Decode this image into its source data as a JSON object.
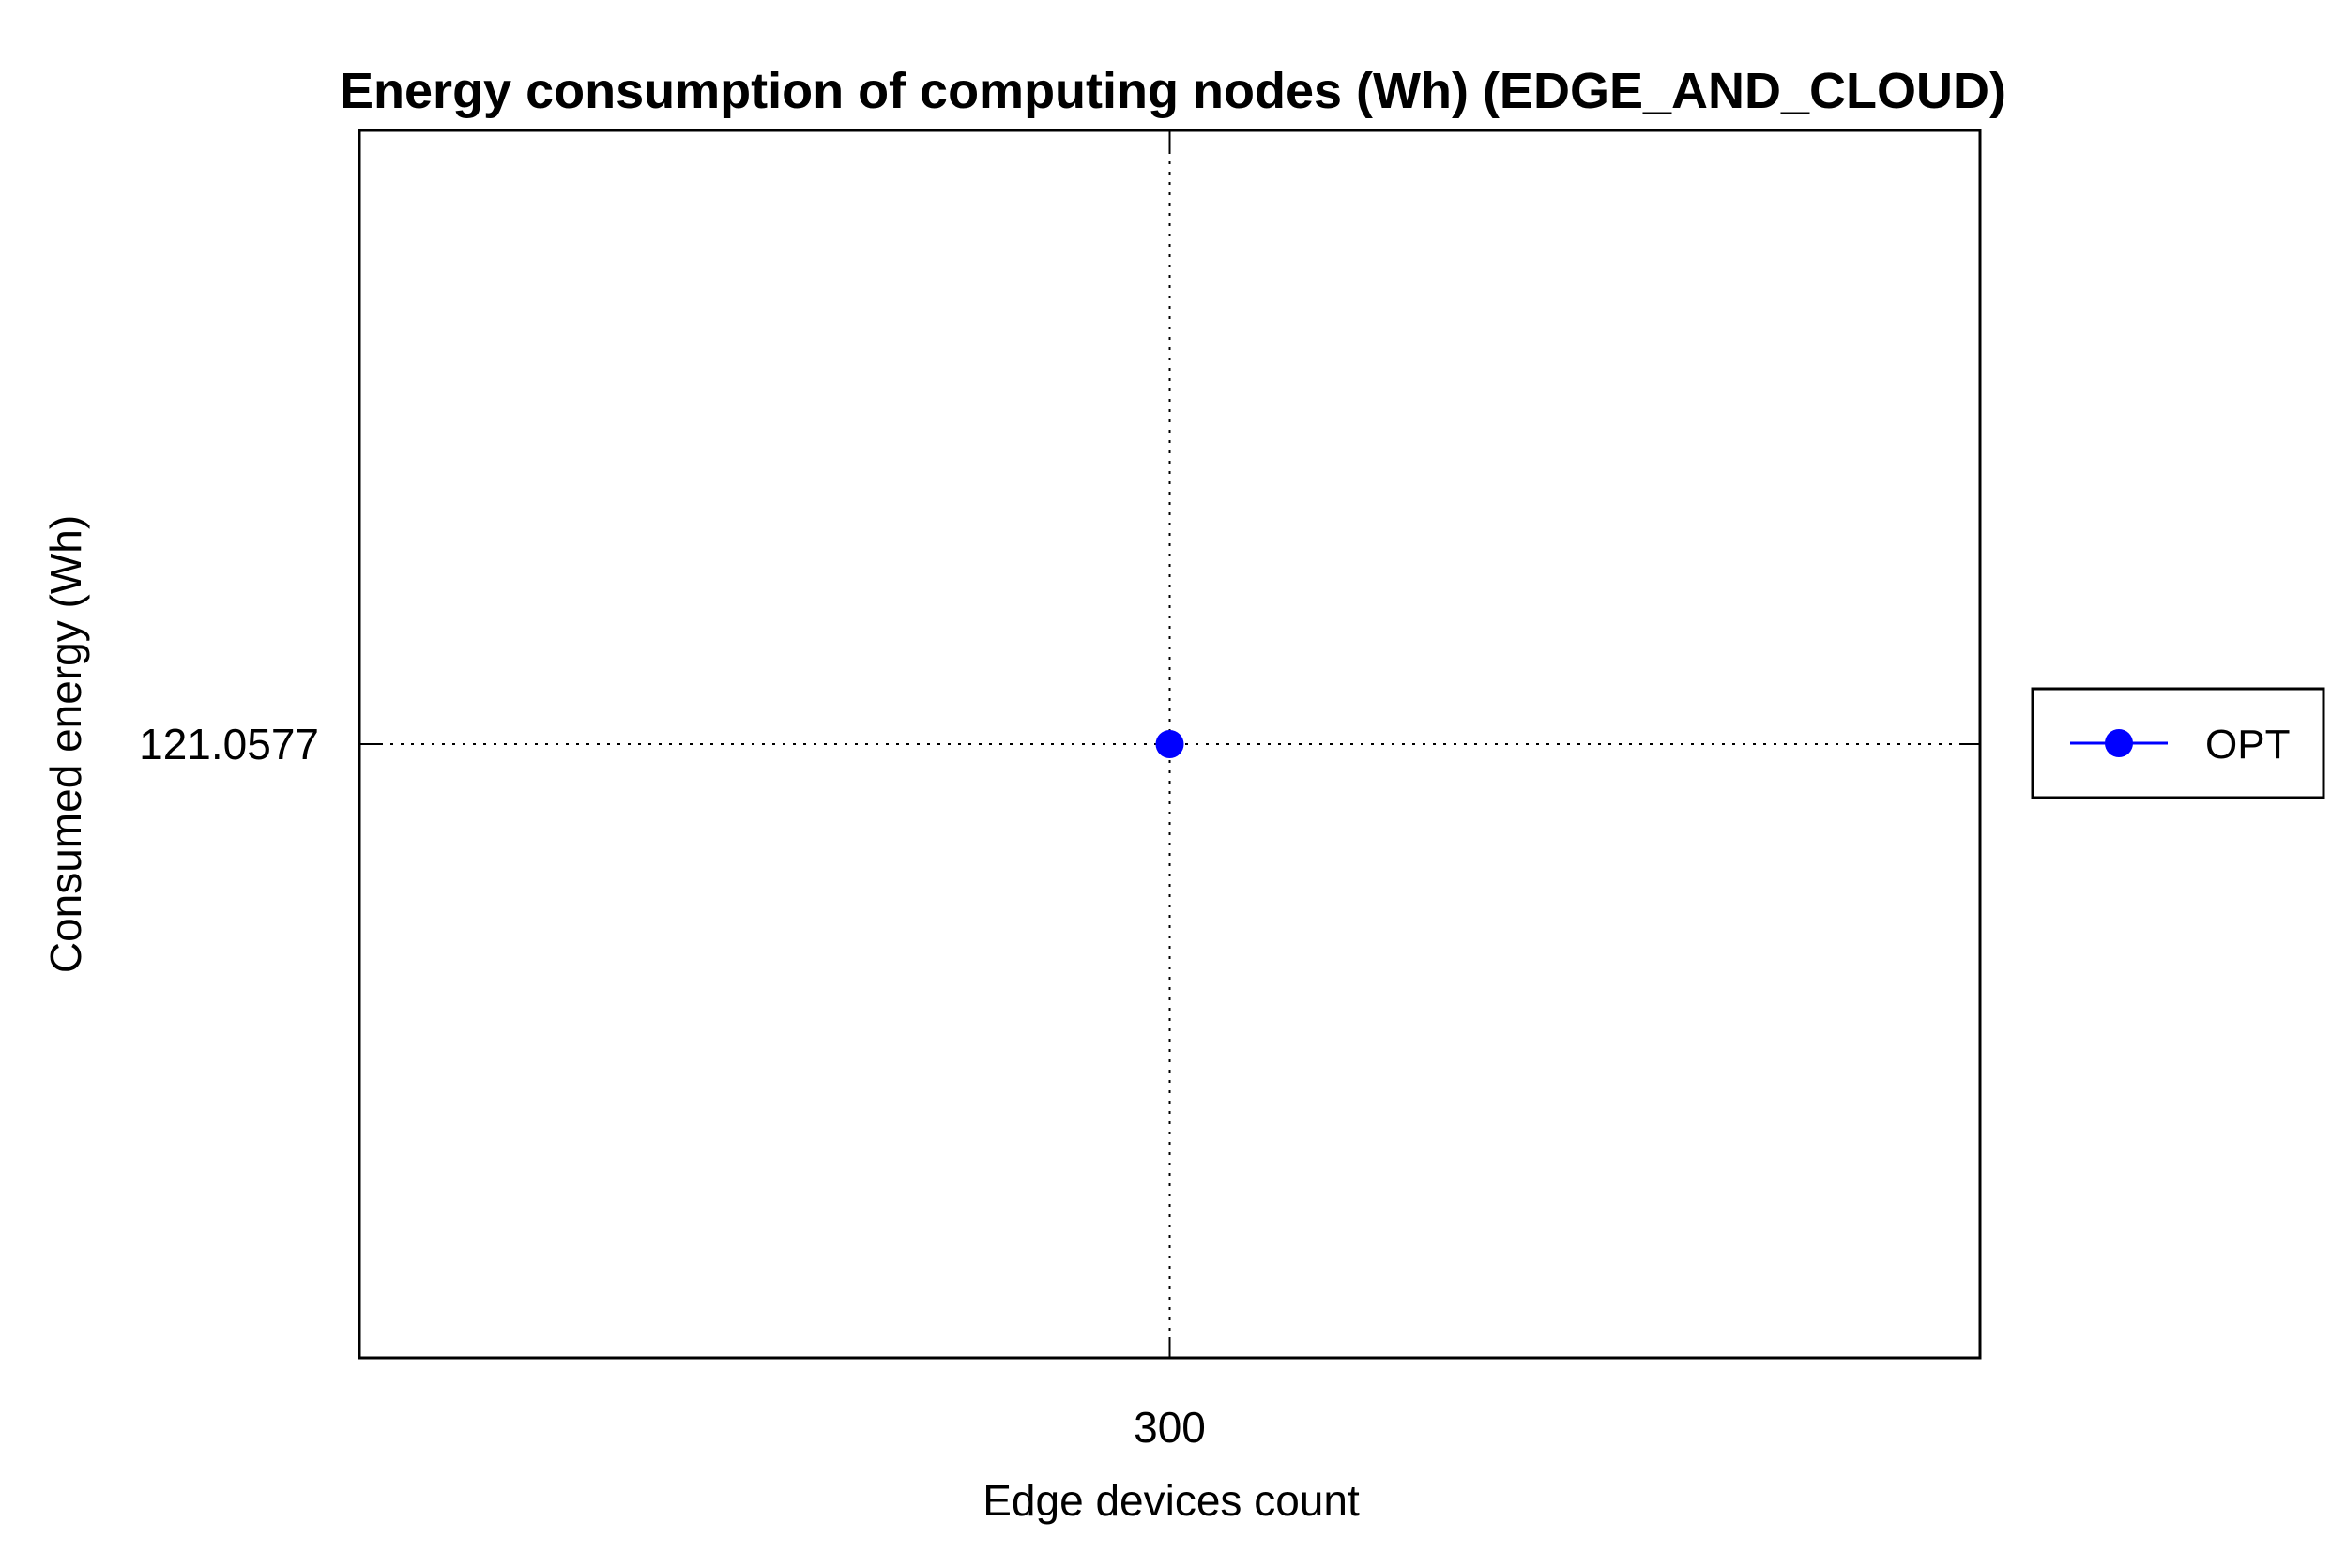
{
  "chart_data": {
    "type": "line",
    "title": "Energy consumption of computing nodes (Wh) (EDGE_AND_CLOUD)",
    "xlabel": "Edge devices count",
    "ylabel": "Consumed energy (Wh)",
    "x_ticks": [
      300
    ],
    "x_tick_labels": [
      "300"
    ],
    "y_ticks": [
      121.0577
    ],
    "y_tick_labels": [
      "121.0577"
    ],
    "xlim": [
      299,
      301
    ],
    "ylim": [
      120.0577,
      122.0577
    ],
    "grid": true,
    "legend_position": "right",
    "series": [
      {
        "name": "OPT",
        "color": "#0000ff",
        "marker": "circle",
        "x": [
          300
        ],
        "y": [
          121.0577
        ]
      }
    ]
  }
}
